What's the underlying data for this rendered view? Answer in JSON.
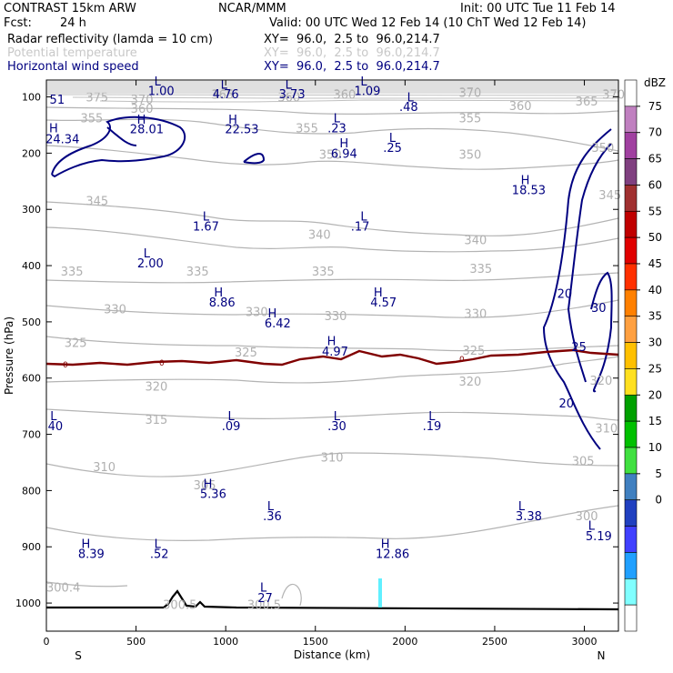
{
  "header": {
    "title": "CONTRAST 15km ARW",
    "center": "NCAR/MMM",
    "init": "Init: 00 UTC Tue 11 Feb 14",
    "fcst_label": "Fcst:",
    "fcst_value": "24 h",
    "valid": "Valid: 00 UTC Wed 12 Feb 14 (10 ChT Wed 12 Feb 14)",
    "fields": [
      {
        "name": "Radar reflectivity (lamda = 10 cm)",
        "xy": "XY=  96.0,  2.5 to  96.0,214.7",
        "color": "#000000"
      },
      {
        "name": "Potential temperature",
        "xy": "XY=  96.0,  2.5 to  96.0,214.7",
        "color": "#c8c8c8"
      },
      {
        "name": "Horizontal wind speed",
        "xy": "XY=  96.0,  2.5 to  96.0,214.7",
        "color": "#000080"
      }
    ]
  },
  "chart_data": {
    "type": "contour-cross-section",
    "xlabel": "Distance (km)",
    "ylabel": "Pressure (hPa)",
    "xlim": [
      0,
      3190
    ],
    "ylim": [
      1050,
      70
    ],
    "x_ticks": [
      0,
      500,
      1000,
      1500,
      2000,
      2500,
      3000
    ],
    "y_ticks": [
      100,
      200,
      300,
      400,
      500,
      600,
      700,
      800,
      900,
      1000
    ],
    "x_end_labels": {
      "left": "S",
      "right": "N"
    },
    "theta_labels": [
      {
        "x": 220,
        "p": 108,
        "t": "375"
      },
      {
        "x": 470,
        "p": 112,
        "t": "370"
      },
      {
        "x": 920,
        "p": 103,
        "t": "365"
      },
      {
        "x": 1290,
        "p": 108,
        "t": "360"
      },
      {
        "x": 1600,
        "p": 103,
        "t": "360"
      },
      {
        "x": 2300,
        "p": 100,
        "t": "370"
      },
      {
        "x": 2580,
        "p": 123,
        "t": "360"
      },
      {
        "x": 2950,
        "p": 115,
        "t": "365"
      },
      {
        "x": 3100,
        "p": 103,
        "t": "370"
      },
      {
        "x": 470,
        "p": 128,
        "t": "360"
      },
      {
        "x": 190,
        "p": 145,
        "t": "355"
      },
      {
        "x": 1390,
        "p": 163,
        "t": "355"
      },
      {
        "x": 2300,
        "p": 145,
        "t": "355"
      },
      {
        "x": 1520,
        "p": 210,
        "t": "350"
      },
      {
        "x": 2300,
        "p": 210,
        "t": "350"
      },
      {
        "x": 3040,
        "p": 198,
        "t": "350"
      },
      {
        "x": 220,
        "p": 292,
        "t": "345"
      },
      {
        "x": 3080,
        "p": 282,
        "t": "345"
      },
      {
        "x": 1460,
        "p": 352,
        "t": "340"
      },
      {
        "x": 2330,
        "p": 362,
        "t": "340"
      },
      {
        "x": 80,
        "p": 418,
        "t": "335"
      },
      {
        "x": 780,
        "p": 418,
        "t": "335"
      },
      {
        "x": 1480,
        "p": 418,
        "t": "335"
      },
      {
        "x": 2360,
        "p": 413,
        "t": "335"
      },
      {
        "x": 320,
        "p": 485,
        "t": "330"
      },
      {
        "x": 1110,
        "p": 490,
        "t": "330"
      },
      {
        "x": 1550,
        "p": 497,
        "t": "330"
      },
      {
        "x": 2330,
        "p": 493,
        "t": "330"
      },
      {
        "x": 100,
        "p": 545,
        "t": "325"
      },
      {
        "x": 1050,
        "p": 562,
        "t": "325"
      },
      {
        "x": 2320,
        "p": 558,
        "t": "325"
      },
      {
        "x": 550,
        "p": 622,
        "t": "320"
      },
      {
        "x": 2300,
        "p": 613,
        "t": "320"
      },
      {
        "x": 3030,
        "p": 612,
        "t": "320"
      },
      {
        "x": 550,
        "p": 681,
        "t": "315"
      },
      {
        "x": 3060,
        "p": 697,
        "t": "310"
      },
      {
        "x": 260,
        "p": 765,
        "t": "310"
      },
      {
        "x": 1530,
        "p": 748,
        "t": "310"
      },
      {
        "x": 2930,
        "p": 755,
        "t": "305"
      },
      {
        "x": 820,
        "p": 798,
        "t": "305"
      },
      {
        "x": 2950,
        "p": 853,
        "t": "300"
      },
      {
        "x": 0,
        "p": 980,
        "t": "300.4"
      },
      {
        "x": 650,
        "p": 1010,
        "t": "300.5"
      },
      {
        "x": 1120,
        "p": 1010,
        "t": "300.5"
      }
    ],
    "wind_labels": [
      {
        "x": 60,
        "p": 112,
        "t": "51"
      },
      {
        "x": 620,
        "p": 80,
        "t": "L"
      },
      {
        "x": 640,
        "p": 97,
        "t": "1.00"
      },
      {
        "x": 990,
        "p": 85,
        "t": "L"
      },
      {
        "x": 1000,
        "p": 102,
        "t": "4.76"
      },
      {
        "x": 1350,
        "p": 85,
        "t": "L"
      },
      {
        "x": 1370,
        "p": 102,
        "t": "3.73"
      },
      {
        "x": 1770,
        "p": 80,
        "t": "L"
      },
      {
        "x": 1790,
        "p": 97,
        "t": "1.09"
      },
      {
        "x": 2030,
        "p": 108,
        "t": "L"
      },
      {
        "x": 2020,
        "p": 125,
        "t": ".48"
      },
      {
        "x": 1620,
        "p": 145,
        "t": "L"
      },
      {
        "x": 1620,
        "p": 163,
        "t": ".23"
      },
      {
        "x": 40,
        "p": 163,
        "t": "H"
      },
      {
        "x": 90,
        "p": 182,
        "t": "24.34"
      },
      {
        "x": 530,
        "p": 148,
        "t": "H"
      },
      {
        "x": 560,
        "p": 165,
        "t": "28.01"
      },
      {
        "x": 1040,
        "p": 148,
        "t": "H"
      },
      {
        "x": 1090,
        "p": 165,
        "t": "22.53"
      },
      {
        "x": 1660,
        "p": 190,
        "t": "H"
      },
      {
        "x": 1660,
        "p": 208,
        "t": "6.94"
      },
      {
        "x": 1930,
        "p": 180,
        "t": "L"
      },
      {
        "x": 1930,
        "p": 198,
        "t": ".25"
      },
      {
        "x": 2670,
        "p": 255,
        "t": "H"
      },
      {
        "x": 2690,
        "p": 273,
        "t": "18.53"
      },
      {
        "x": 890,
        "p": 320,
        "t": "L"
      },
      {
        "x": 890,
        "p": 338,
        "t": "1.67"
      },
      {
        "x": 1770,
        "p": 320,
        "t": "L"
      },
      {
        "x": 1750,
        "p": 338,
        "t": ".17"
      },
      {
        "x": 560,
        "p": 385,
        "t": "L"
      },
      {
        "x": 580,
        "p": 403,
        "t": "2.00"
      },
      {
        "x": 960,
        "p": 455,
        "t": "H"
      },
      {
        "x": 980,
        "p": 473,
        "t": "8.86"
      },
      {
        "x": 1850,
        "p": 455,
        "t": "H"
      },
      {
        "x": 1880,
        "p": 473,
        "t": "4.57"
      },
      {
        "x": 1260,
        "p": 492,
        "t": "H"
      },
      {
        "x": 1290,
        "p": 510,
        "t": "6.42"
      },
      {
        "x": 1590,
        "p": 541,
        "t": "H"
      },
      {
        "x": 1610,
        "p": 560,
        "t": "4.97"
      },
      {
        "x": 40,
        "p": 675,
        "t": "L"
      },
      {
        "x": 50,
        "p": 693,
        "t": "40"
      },
      {
        "x": 1030,
        "p": 675,
        "t": "L"
      },
      {
        "x": 1030,
        "p": 693,
        "t": ".09"
      },
      {
        "x": 1620,
        "p": 675,
        "t": "L"
      },
      {
        "x": 1620,
        "p": 693,
        "t": ".30"
      },
      {
        "x": 2150,
        "p": 675,
        "t": "L"
      },
      {
        "x": 2150,
        "p": 693,
        "t": ".19"
      },
      {
        "x": 900,
        "p": 795,
        "t": "H"
      },
      {
        "x": 930,
        "p": 813,
        "t": "5.36"
      },
      {
        "x": 1250,
        "p": 835,
        "t": "L"
      },
      {
        "x": 1260,
        "p": 853,
        "t": ".36"
      },
      {
        "x": 2650,
        "p": 835,
        "t": "L"
      },
      {
        "x": 2690,
        "p": 853,
        "t": "3.38"
      },
      {
        "x": 3040,
        "p": 870,
        "t": "L"
      },
      {
        "x": 3080,
        "p": 888,
        "t": "5.19"
      },
      {
        "x": 220,
        "p": 902,
        "t": "H"
      },
      {
        "x": 250,
        "p": 920,
        "t": "8.39"
      },
      {
        "x": 620,
        "p": 902,
        "t": "L"
      },
      {
        "x": 630,
        "p": 920,
        "t": ".52"
      },
      {
        "x": 1890,
        "p": 902,
        "t": "H"
      },
      {
        "x": 1930,
        "p": 920,
        "t": "12.86"
      },
      {
        "x": 1210,
        "p": 980,
        "t": "L"
      },
      {
        "x": 1220,
        "p": 998,
        "t": "27"
      },
      {
        "x": 2890,
        "p": 457,
        "t": "20"
      },
      {
        "x": 3080,
        "p": 482,
        "t": "30"
      },
      {
        "x": 2970,
        "p": 552,
        "t": "25"
      },
      {
        "x": 2900,
        "p": 652,
        "t": "20"
      }
    ],
    "freezing_level_labels": [
      "0",
      "0",
      "0"
    ],
    "dbz_scale": {
      "unit": "dBZ",
      "levels": [
        "75",
        "70",
        "65",
        "60",
        "55",
        "50",
        "45",
        "40",
        "35",
        "30",
        "25",
        "20",
        "15",
        "10",
        "5",
        "0"
      ],
      "colors": [
        "#ffffff",
        "#c080c0",
        "#a040a0",
        "#804080",
        "#a03030",
        "#c00000",
        "#e00000",
        "#ff3000",
        "#ff8000",
        "#ffa040",
        "#ffc000",
        "#ffe020",
        "#00a000",
        "#00c000",
        "#40e040",
        "#4080c0",
        "#2040c0",
        "#4040ff",
        "#20a0ff",
        "#80ffff",
        "#ffffff"
      ]
    }
  }
}
